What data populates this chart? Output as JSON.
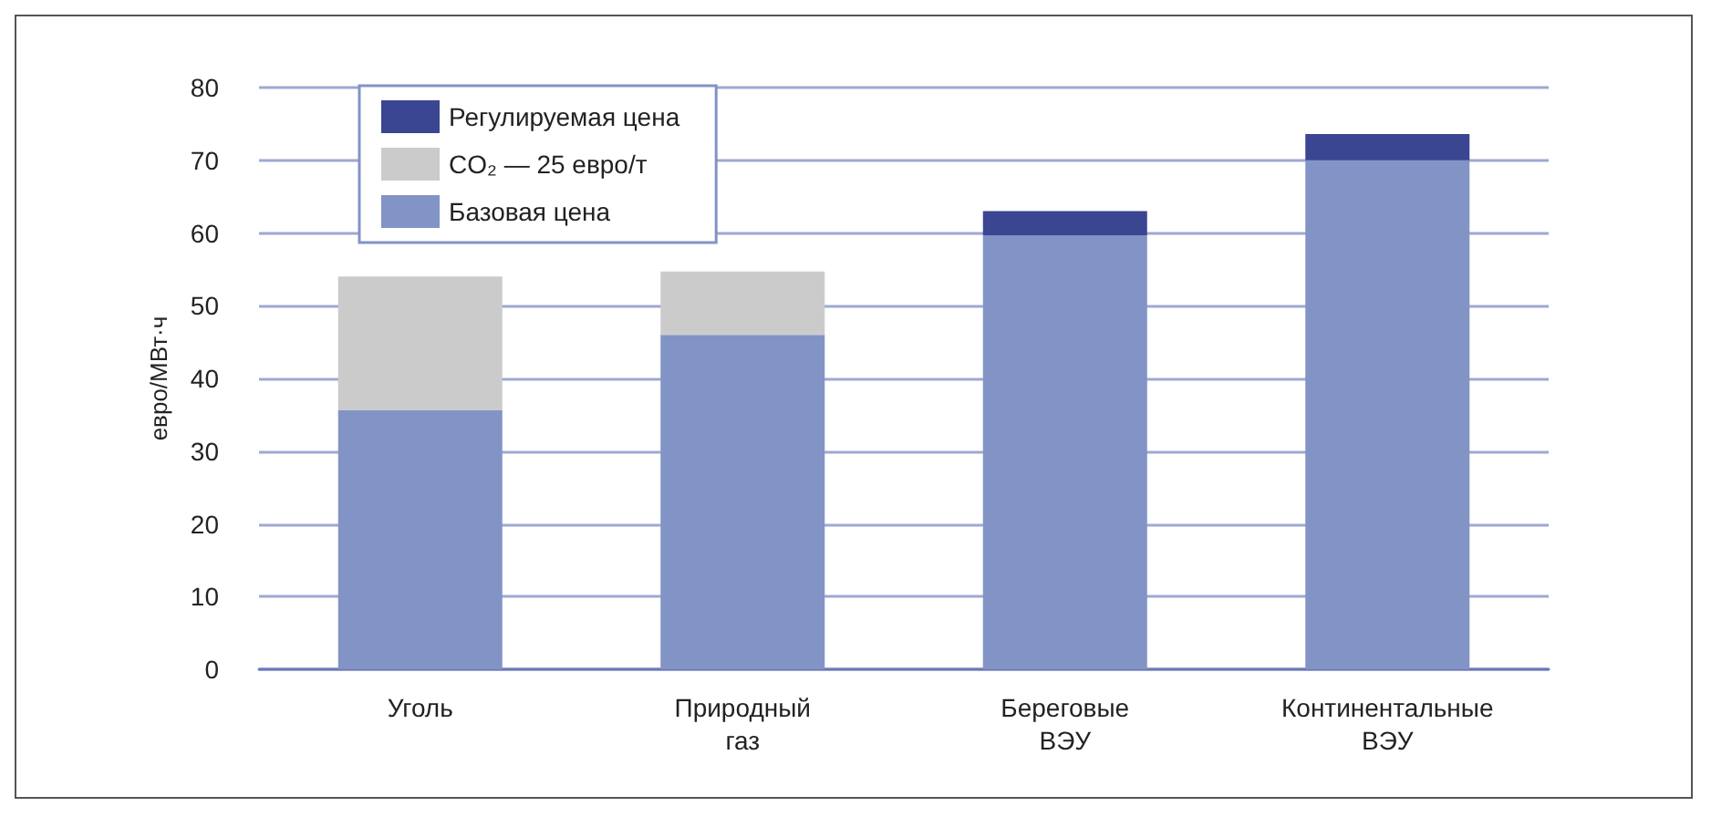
{
  "chart_data": {
    "type": "bar",
    "stacked": true,
    "ylabel": "евро/МВт·ч",
    "categories": [
      "Уголь",
      "Природный\nгаз",
      "Береговые\nВЭУ",
      "Континентальные\nВЭУ"
    ],
    "series": [
      {
        "name": "Базовая цена",
        "color": "#8293c5",
        "values": [
          35.6,
          46,
          59.7,
          70
        ]
      },
      {
        "name": "CO₂ — 25 евро/т",
        "color": "#cbcbcb",
        "values": [
          18.4,
          8.7,
          null,
          null
        ]
      },
      {
        "name": "Регулируемая цена",
        "color": "#3a4692",
        "values": [
          null,
          null,
          3.3,
          3.6
        ]
      }
    ],
    "ylim": [
      0,
      80
    ],
    "yticks": [
      0,
      10,
      20,
      30,
      40,
      50,
      60,
      70,
      80
    ],
    "grid": "y",
    "legend": "top left"
  }
}
